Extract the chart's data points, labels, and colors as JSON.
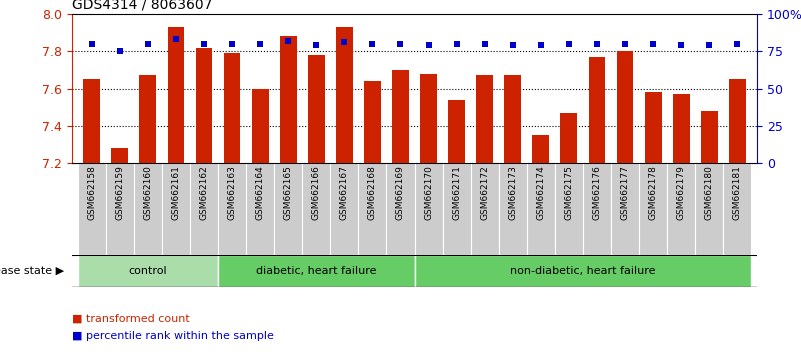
{
  "title": "GDS4314 / 8063607",
  "samples": [
    "GSM662158",
    "GSM662159",
    "GSM662160",
    "GSM662161",
    "GSM662162",
    "GSM662163",
    "GSM662164",
    "GSM662165",
    "GSM662166",
    "GSM662167",
    "GSM662168",
    "GSM662169",
    "GSM662170",
    "GSM662171",
    "GSM662172",
    "GSM662173",
    "GSM662174",
    "GSM662175",
    "GSM662176",
    "GSM662177",
    "GSM662178",
    "GSM662179",
    "GSM662180",
    "GSM662181"
  ],
  "bar_values": [
    7.65,
    7.28,
    7.67,
    7.93,
    7.82,
    7.79,
    7.6,
    7.88,
    7.78,
    7.93,
    7.64,
    7.7,
    7.68,
    7.54,
    7.67,
    7.67,
    7.35,
    7.47,
    7.77,
    7.8,
    7.58,
    7.57,
    7.48,
    7.65
  ],
  "percentile_values": [
    80,
    75,
    80,
    83,
    80,
    80,
    80,
    82,
    79,
    81,
    80,
    80,
    79,
    80,
    80,
    79,
    79,
    80,
    80,
    80,
    80,
    79,
    79,
    80
  ],
  "bar_color": "#cc2200",
  "percentile_color": "#0000cc",
  "ymin": 7.2,
  "ymax": 8.0,
  "y2min": 0,
  "y2max": 100,
  "yticks": [
    7.2,
    7.4,
    7.6,
    7.8,
    8.0
  ],
  "y2ticks": [
    0,
    25,
    50,
    75,
    100
  ],
  "y2ticklabels": [
    "0",
    "25",
    "50",
    "75",
    "100%"
  ],
  "groups": [
    {
      "label": "control",
      "start": 0,
      "end": 5,
      "color": "#aaddaa"
    },
    {
      "label": "diabetic, heart failure",
      "start": 5,
      "end": 12,
      "color": "#66cc66"
    },
    {
      "label": "non-diabetic, heart failure",
      "start": 12,
      "end": 24,
      "color": "#66cc66"
    }
  ],
  "legend_bar_label": "transformed count",
  "legend_pct_label": "percentile rank within the sample",
  "disease_state_label": "disease state",
  "bg_color": "#ffffff",
  "sample_bg_color": "#cccccc",
  "group_border_color": "#000000"
}
